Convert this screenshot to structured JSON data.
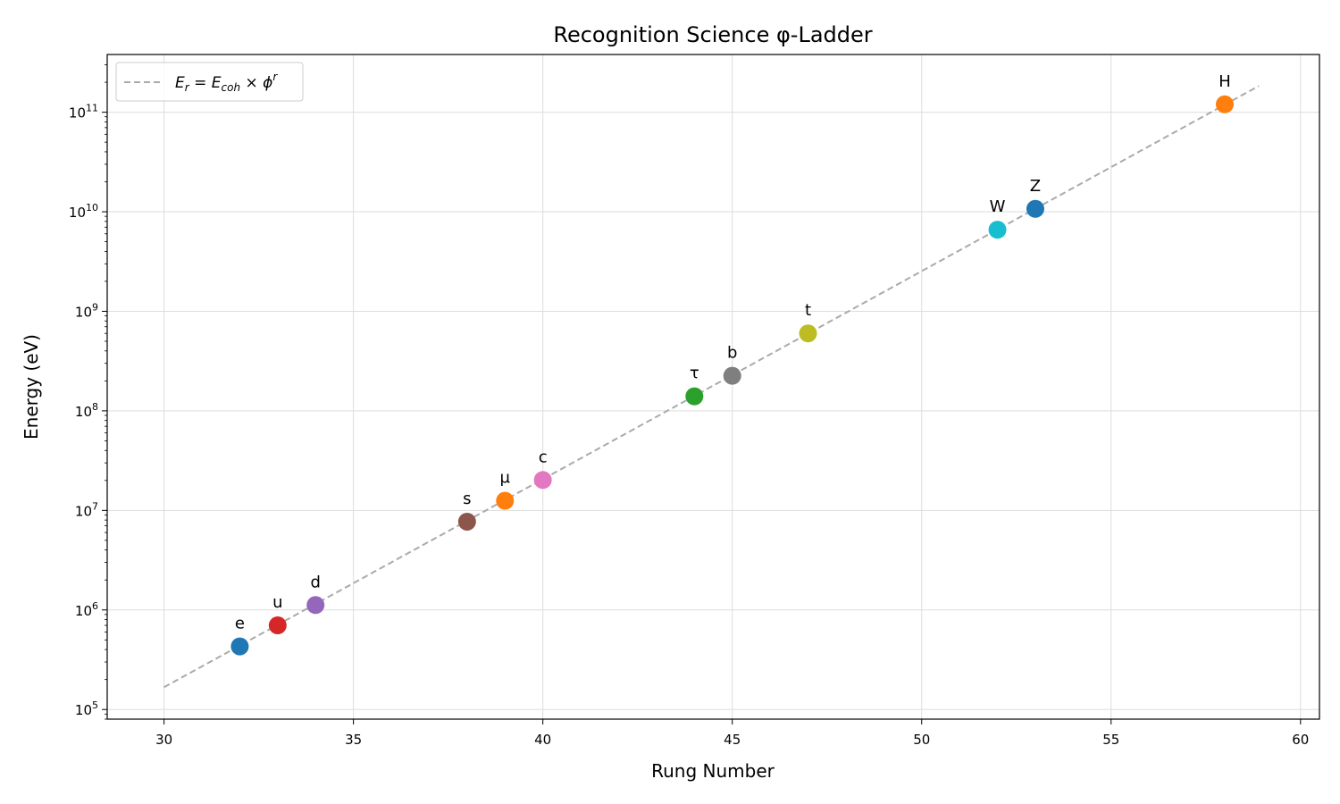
{
  "chart_data": {
    "type": "scatter",
    "title": "Recognition Science φ-Ladder",
    "xlabel": "Rung Number",
    "ylabel": "Energy (eV)",
    "xlim": [
      28.5,
      60.5
    ],
    "ylim": [
      80000,
      380000000000
    ],
    "yscale": "log",
    "grid": true,
    "legend_position": "top-left",
    "x_ticks": [
      30,
      35,
      40,
      45,
      50,
      55,
      60
    ],
    "y_ticks": [
      100000,
      1000000,
      10000000,
      100000000,
      1000000000,
      10000000000,
      100000000000
    ],
    "y_tick_exponents": [
      "5",
      "6",
      "7",
      "8",
      "9",
      "10",
      "11"
    ],
    "y_tick_base": "10",
    "fit_line": {
      "legend_label": "E_r = E_coh × ϕ^r",
      "legend_parts": {
        "e1": "E",
        "s1": "r",
        "eq": " = ",
        "e2": "E",
        "s2": "coh",
        "times": " × ",
        "phi": "ϕ",
        "sup": "r"
      },
      "x_range": [
        30,
        58.9
      ],
      "E_coh": 0.09,
      "base": 1.618034,
      "color": "#aaaaaa",
      "style": "dashed"
    },
    "points": [
      {
        "label": "e",
        "x": 32,
        "y": 430000,
        "color": "#1f77b4"
      },
      {
        "label": "u",
        "x": 33,
        "y": 700000,
        "color": "#d62728"
      },
      {
        "label": "d",
        "x": 34,
        "y": 1120000,
        "color": "#9467bd"
      },
      {
        "label": "s",
        "x": 38,
        "y": 7700000,
        "color": "#8c564b"
      },
      {
        "label": "μ",
        "x": 39,
        "y": 12500000,
        "color": "#ff7f0e"
      },
      {
        "label": "c",
        "x": 40,
        "y": 20200000,
        "color": "#e377c2"
      },
      {
        "label": "τ",
        "x": 44,
        "y": 140000000,
        "color": "#2ca02c"
      },
      {
        "label": "b",
        "x": 45,
        "y": 225000000,
        "color": "#7f7f7f"
      },
      {
        "label": "t",
        "x": 47,
        "y": 600000000,
        "color": "#bcbd22"
      },
      {
        "label": "W",
        "x": 52,
        "y": 6600000000,
        "color": "#17becf"
      },
      {
        "label": "Z",
        "x": 53,
        "y": 10700000000,
        "color": "#1f77b4"
      },
      {
        "label": "H",
        "x": 58,
        "y": 120000000000,
        "color": "#ff7f0e"
      }
    ]
  }
}
